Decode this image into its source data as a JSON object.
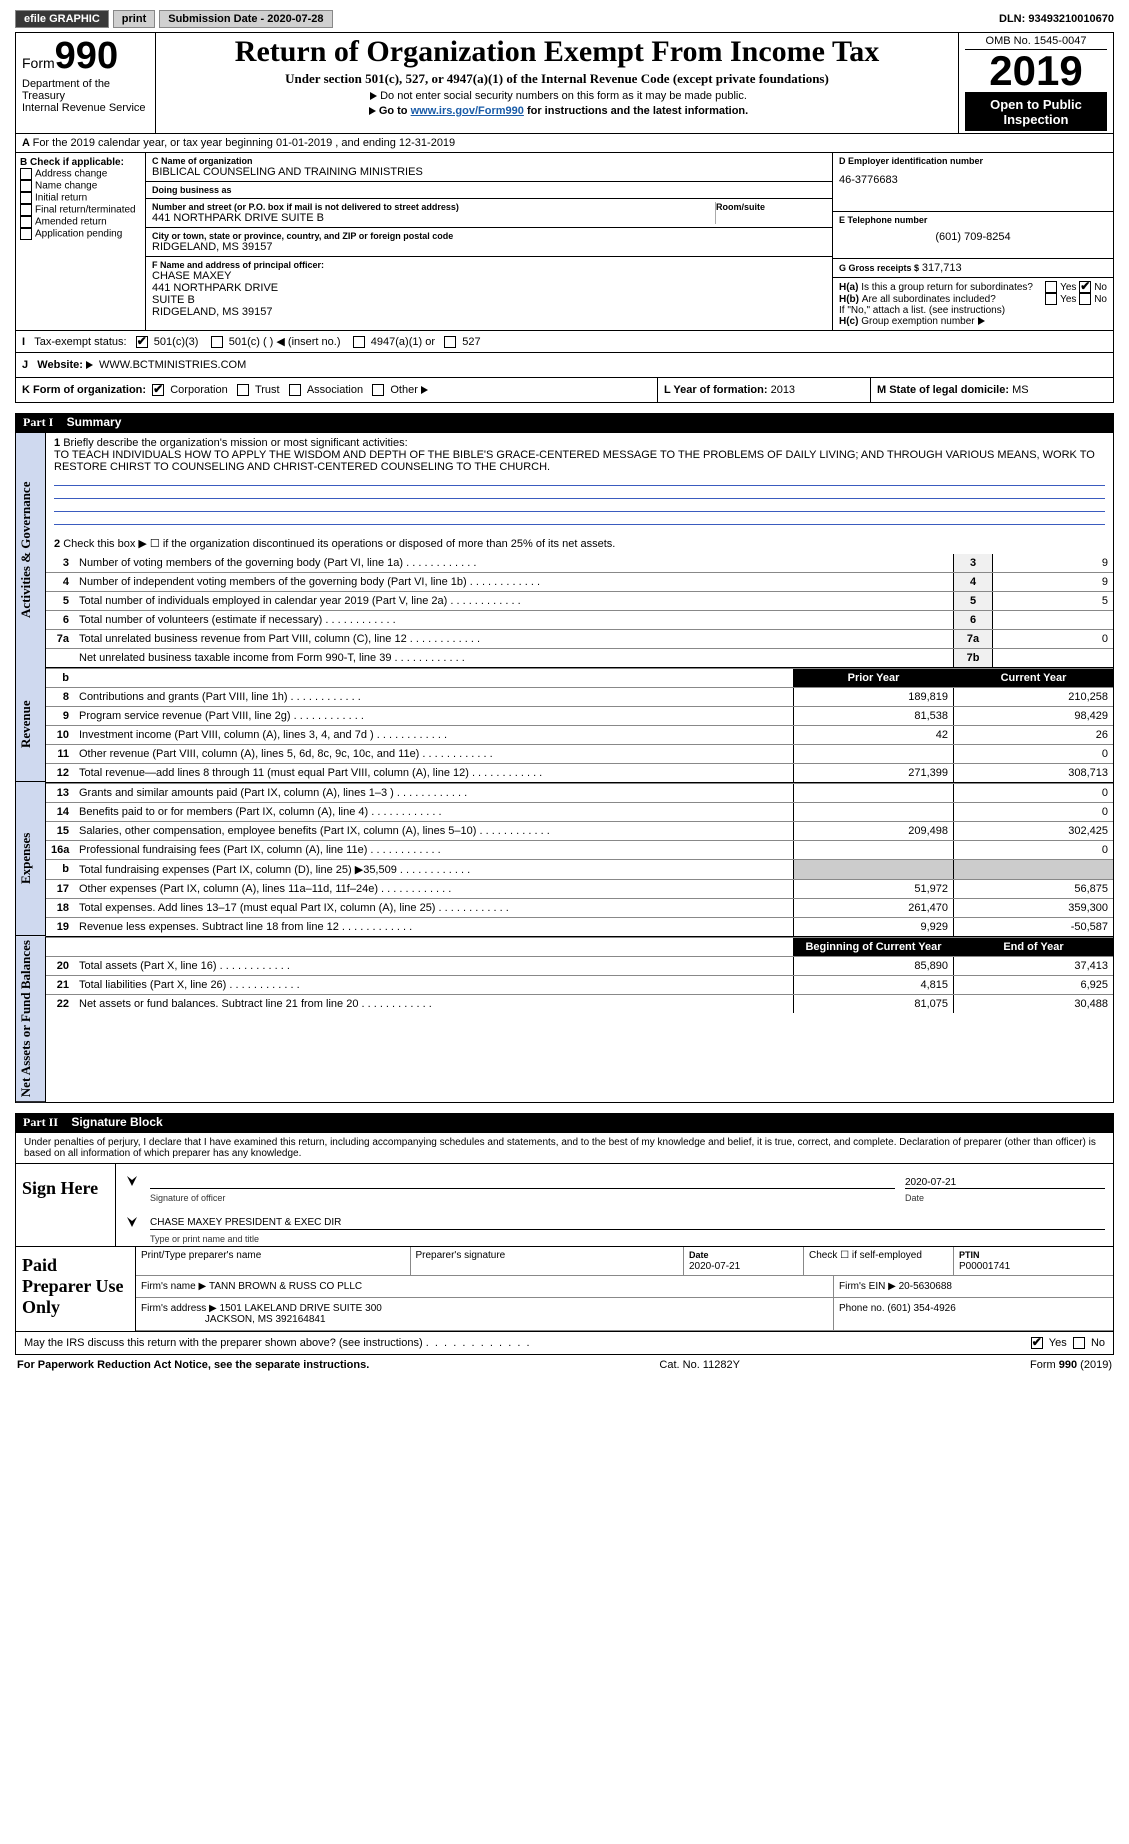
{
  "topbar": {
    "efile": "efile GRAPHIC",
    "print": "print",
    "submission": "Submission Date - 2020-07-28",
    "dln_label": "DLN:",
    "dln": "93493210010670"
  },
  "header": {
    "form_word": "Form",
    "form_num": "990",
    "dept1": "Department of the Treasury",
    "dept2": "Internal Revenue Service",
    "title": "Return of Organization Exempt From Income Tax",
    "subtitle": "Under section 501(c), 527, or 4947(a)(1) of the Internal Revenue Code (except private foundations)",
    "instr1": "Do not enter social security numbers on this form as it may be made public.",
    "instr2_pre": "Go to ",
    "instr2_link": "www.irs.gov/Form990",
    "instr2_post": " for instructions and the latest information.",
    "omb": "OMB No. 1545-0047",
    "year": "2019",
    "inspect": "Open to Public Inspection"
  },
  "lineA": "For the 2019 calendar year, or tax year beginning 01-01-2019    , and ending 12-31-2019",
  "colB": {
    "hdr": "B Check if applicable:",
    "opts": [
      "Address change",
      "Name change",
      "Initial return",
      "Final return/terminated",
      "Amended return",
      "Application pending"
    ]
  },
  "colC": {
    "name_lbl": "C Name of organization",
    "name": "BIBLICAL COUNSELING AND TRAINING MINISTRIES",
    "dba_lbl": "Doing business as",
    "dba": "",
    "street_lbl": "Number and street (or P.O. box if mail is not delivered to street address)",
    "room_lbl": "Room/suite",
    "street": "441 NORTHPARK DRIVE SUITE B",
    "city_lbl": "City or town, state or province, country, and ZIP or foreign postal code",
    "city": "RIDGELAND, MS  39157",
    "F_lbl": "F Name and address of principal officer:",
    "F_name": "CHASE MAXEY",
    "F_addr1": "441 NORTHPARK DRIVE",
    "F_addr2": "SUITE B",
    "F_addr3": "RIDGELAND, MS  39157"
  },
  "colD": {
    "ein_lbl": "D Employer identification number",
    "ein": "46-3776683",
    "phone_lbl": "E Telephone number",
    "phone": "(601) 709-8254",
    "gross_lbl": "G Gross receipts $",
    "gross": "317,713",
    "Ha_lbl": "Is this a group return for subordinates?",
    "Hb_lbl": "Are all subordinates included?",
    "Hb_note": "If \"No,\" attach a list. (see instructions)",
    "Hc_lbl": "Group exemption number",
    "yes": "Yes",
    "no": "No",
    "Ha": "H(a)",
    "Hb": "H(b)",
    "Hc": "H(c)"
  },
  "rowI": {
    "lbl": "Tax-exempt status:",
    "opts": [
      "501(c)(3)",
      "501(c) (   ) ◀ (insert no.)",
      "4947(a)(1) or",
      "527"
    ]
  },
  "rowJ": {
    "lbl": "Website:",
    "val": "WWW.BCTMINISTRIES.COM"
  },
  "rowK": {
    "lbl": "K Form of organization:",
    "opts": [
      "Corporation",
      "Trust",
      "Association",
      "Other"
    ],
    "L_lbl": "L Year of formation:",
    "L_val": "2013",
    "M_lbl": "M State of legal domicile:",
    "M_val": "MS"
  },
  "part1": {
    "title": "Part I",
    "sub": "Summary",
    "side_gov": "Activities & Governance",
    "side_rev": "Revenue",
    "side_exp": "Expenses",
    "side_net": "Net Assets or Fund Balances",
    "q1_lbl": "Briefly describe the organization's mission or most significant activities:",
    "q1_val": "TO TEACH INDIVIDUALS HOW TO APPLY THE WISDOM AND DEPTH OF THE BIBLE'S GRACE-CENTERED MESSAGE TO THE PROBLEMS OF DAILY LIVING; AND THROUGH VARIOUS MEANS, WORK TO RESTORE CHIRST TO COUNSELING AND CHRIST-CENTERED COUNSELING TO THE CHURCH.",
    "q2": "Check this box ▶ ☐ if the organization discontinued its operations or disposed of more than 25% of its net assets.",
    "rows_single": [
      {
        "n": "3",
        "txt": "Number of voting members of the governing body (Part VI, line 1a)",
        "ln": "3",
        "v": "9"
      },
      {
        "n": "4",
        "txt": "Number of independent voting members of the governing body (Part VI, line 1b)",
        "ln": "4",
        "v": "9"
      },
      {
        "n": "5",
        "txt": "Total number of individuals employed in calendar year 2019 (Part V, line 2a)",
        "ln": "5",
        "v": "5"
      },
      {
        "n": "6",
        "txt": "Total number of volunteers (estimate if necessary)",
        "ln": "6",
        "v": ""
      },
      {
        "n": "7a",
        "txt": "Total unrelated business revenue from Part VIII, column (C), line 12",
        "ln": "7a",
        "v": "0"
      },
      {
        "n": "",
        "txt": "Net unrelated business taxable income from Form 990-T, line 39",
        "ln": "7b",
        "v": ""
      }
    ],
    "col_hdr": {
      "n": "b",
      "prior": "Prior Year",
      "curr": "Current Year"
    },
    "rows_rev": [
      {
        "n": "8",
        "txt": "Contributions and grants (Part VIII, line 1h)",
        "p": "189,819",
        "c": "210,258"
      },
      {
        "n": "9",
        "txt": "Program service revenue (Part VIII, line 2g)",
        "p": "81,538",
        "c": "98,429"
      },
      {
        "n": "10",
        "txt": "Investment income (Part VIII, column (A), lines 3, 4, and 7d )",
        "p": "42",
        "c": "26"
      },
      {
        "n": "11",
        "txt": "Other revenue (Part VIII, column (A), lines 5, 6d, 8c, 9c, 10c, and 11e)",
        "p": "",
        "c": "0"
      },
      {
        "n": "12",
        "txt": "Total revenue—add lines 8 through 11 (must equal Part VIII, column (A), line 12)",
        "p": "271,399",
        "c": "308,713"
      }
    ],
    "rows_exp": [
      {
        "n": "13",
        "txt": "Grants and similar amounts paid (Part IX, column (A), lines 1–3 )",
        "p": "",
        "c": "0"
      },
      {
        "n": "14",
        "txt": "Benefits paid to or for members (Part IX, column (A), line 4)",
        "p": "",
        "c": "0"
      },
      {
        "n": "15",
        "txt": "Salaries, other compensation, employee benefits (Part IX, column (A), lines 5–10)",
        "p": "209,498",
        "c": "302,425"
      },
      {
        "n": "16a",
        "txt": "Professional fundraising fees (Part IX, column (A), line 11e)",
        "p": "",
        "c": "0"
      },
      {
        "n": "b",
        "txt": "Total fundraising expenses (Part IX, column (D), line 25) ▶35,509",
        "p": "—",
        "c": "—"
      },
      {
        "n": "17",
        "txt": "Other expenses (Part IX, column (A), lines 11a–11d, 11f–24e)",
        "p": "51,972",
        "c": "56,875"
      },
      {
        "n": "18",
        "txt": "Total expenses. Add lines 13–17 (must equal Part IX, column (A), line 25)",
        "p": "261,470",
        "c": "359,300"
      },
      {
        "n": "19",
        "txt": "Revenue less expenses. Subtract line 18 from line 12",
        "p": "9,929",
        "c": "-50,587"
      }
    ],
    "col_hdr2": {
      "prior": "Beginning of Current Year",
      "curr": "End of Year"
    },
    "rows_net": [
      {
        "n": "20",
        "txt": "Total assets (Part X, line 16)",
        "p": "85,890",
        "c": "37,413"
      },
      {
        "n": "21",
        "txt": "Total liabilities (Part X, line 26)",
        "p": "4,815",
        "c": "6,925"
      },
      {
        "n": "22",
        "txt": "Net assets or fund balances. Subtract line 21 from line 20",
        "p": "81,075",
        "c": "30,488"
      }
    ]
  },
  "part2": {
    "title": "Part II",
    "sub": "Signature Block",
    "decl": "Under penalties of perjury, I declare that I have examined this return, including accompanying schedules and statements, and to the best of my knowledge and belief, it is true, correct, and complete. Declaration of preparer (other than officer) is based on all information of which preparer has any knowledge.",
    "sign_here": "Sign Here",
    "sig_of_officer": "Signature of officer",
    "date_lbl": "Date",
    "sig_date": "2020-07-21",
    "name_title": "CHASE MAXEY  PRESIDENT & EXEC DIR",
    "type_name_lbl": "Type or print name and title",
    "paid_prep": "Paid Preparer Use Only",
    "p_col1": "Print/Type preparer's name",
    "p_col2": "Preparer's signature",
    "p_col3_lbl": "Date",
    "p_col3": "2020-07-21",
    "p_col4": "Check ☐ if self-employed",
    "p_col5_lbl": "PTIN",
    "p_col5": "P00001741",
    "firm_name_lbl": "Firm's name    ▶",
    "firm_name": "TANN BROWN & RUSS CO PLLC",
    "firm_ein_lbl": "Firm's EIN ▶",
    "firm_ein": "20-5630688",
    "firm_addr_lbl": "Firm's address ▶",
    "firm_addr1": "1501 LAKELAND DRIVE SUITE 300",
    "firm_addr2": "JACKSON, MS  392164841",
    "firm_phone_lbl": "Phone no.",
    "firm_phone": "(601) 354-4926",
    "discuss": "May the IRS discuss this return with the preparer shown above? (see instructions)",
    "yes": "Yes",
    "no": "No"
  },
  "footer": {
    "l": "For Paperwork Reduction Act Notice, see the separate instructions.",
    "m": "Cat. No. 11282Y",
    "r": "Form 990 (2019)"
  }
}
